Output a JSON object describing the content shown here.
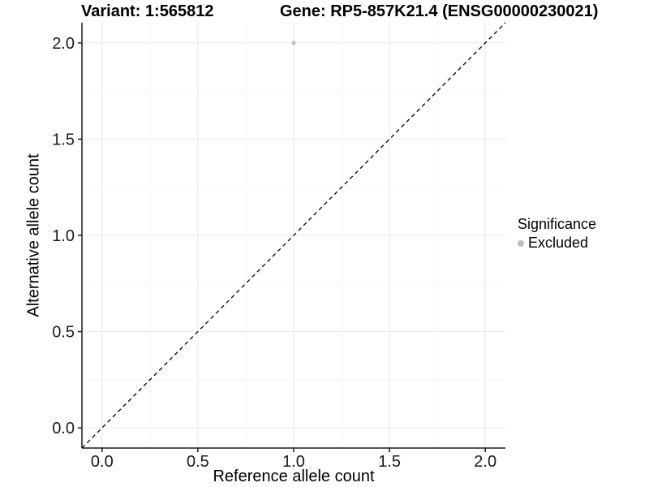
{
  "header": {
    "variant_title": "Variant: 1:565812",
    "gene_title": "Gene: RP5-857K21.4 (ENSG00000230021)"
  },
  "chart_data": {
    "type": "scatter",
    "title": "Variant: 1:565812  Gene: RP5-857K21.4 (ENSG00000230021)",
    "xlabel": "Reference allele count",
    "ylabel": "Alternative allele count",
    "xlim": [
      -0.105,
      2.105
    ],
    "ylim": [
      -0.105,
      2.105
    ],
    "x_ticks": [
      0.0,
      0.5,
      1.0,
      1.5,
      2.0
    ],
    "y_ticks": [
      0.0,
      0.5,
      1.0,
      1.5,
      2.0
    ],
    "x_tick_labels": [
      "0.0",
      "0.5",
      "1.0",
      "1.5",
      "2.0"
    ],
    "y_tick_labels": [
      "0.0",
      "0.5",
      "1.0",
      "1.5",
      "2.0"
    ],
    "x_minor_ticks": [
      0.25,
      0.75,
      1.25,
      1.75
    ],
    "y_minor_ticks": [
      0.25,
      0.75,
      1.25,
      1.75
    ],
    "grid": true,
    "series": [
      {
        "name": "Excluded",
        "points": [
          {
            "x": 1.0,
            "y": 2.0
          }
        ],
        "color": "#bebebe",
        "point_radius": 2.5
      }
    ],
    "reference_line": {
      "type": "identity",
      "style": "dashed",
      "from": [
        -0.105,
        -0.105
      ],
      "to": [
        2.105,
        2.105
      ],
      "color": "#000000"
    },
    "legend": {
      "title": "Significance",
      "position": "right",
      "items": [
        {
          "label": "Excluded",
          "color": "#bebebe"
        }
      ]
    },
    "colors": {
      "background": "#ffffff",
      "panel_background": "#ffffff",
      "grid_major": "#ebebeb",
      "grid_minor": "#f5f5f5",
      "axis_line": "#1a1a1a",
      "tick_text": "#1a1a1a",
      "point": "#bebebe",
      "reference_line": "#000000"
    }
  }
}
